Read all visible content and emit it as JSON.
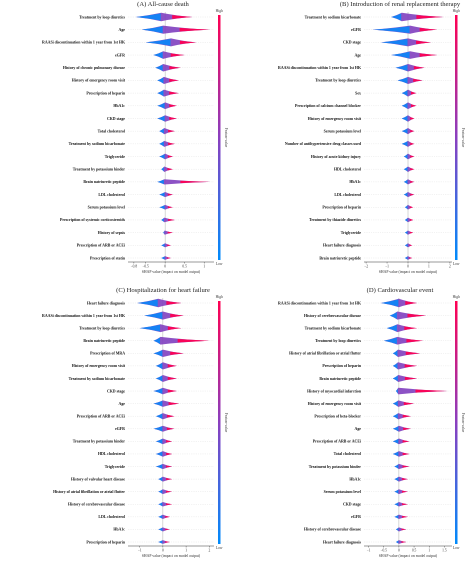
{
  "chart_data": [
    {
      "type": "scatter",
      "panel_title": "(A) All-cause death",
      "xlabel": "SHAP value (impact on model output)",
      "ticks": [
        -0.8,
        -0.5,
        0.0,
        0.5,
        1.0
      ],
      "xlim": [
        -0.95,
        1.25
      ],
      "colorbar_label": "Feature value",
      "colorbar_high": "High",
      "colorbar_low": "Low",
      "features": [
        {
          "name": "Treatment by loop diuretics",
          "min": -0.75,
          "max": 0.7,
          "peak": -0.1,
          "tail": "right"
        },
        {
          "name": "Age",
          "min": -0.6,
          "max": 1.15,
          "peak": -0.05,
          "tail": "right"
        },
        {
          "name": "RAASi discontinuation within 1 year from 1st HK",
          "min": -0.5,
          "max": 0.8,
          "peak": 0.15,
          "tail": "both"
        },
        {
          "name": "eGFR",
          "min": -0.3,
          "max": 0.5,
          "peak": -0.05,
          "tail": "right"
        },
        {
          "name": "History of chronic pulmonary disease",
          "min": -0.25,
          "max": 0.4,
          "peak": -0.05,
          "tail": "right"
        },
        {
          "name": "History of emergency room visit",
          "min": -0.2,
          "max": 0.35,
          "peak": -0.03,
          "tail": "right"
        },
        {
          "name": "Prescription of heparin",
          "min": -0.2,
          "max": 0.35,
          "peak": -0.03,
          "tail": "right"
        },
        {
          "name": "HbA1c",
          "min": -0.2,
          "max": 0.3,
          "peak": 0.0,
          "tail": "both"
        },
        {
          "name": "CKD stage",
          "min": -0.2,
          "max": 0.3,
          "peak": 0.0,
          "tail": "both"
        },
        {
          "name": "Total cholesterol",
          "min": -0.15,
          "max": 0.25,
          "peak": -0.02,
          "tail": "right"
        },
        {
          "name": "Treatment by sodium bicarbonate",
          "min": -0.15,
          "max": 0.25,
          "peak": -0.02,
          "tail": "right"
        },
        {
          "name": "Triglyceride",
          "min": -0.15,
          "max": 0.2,
          "peak": 0.0,
          "tail": "both"
        },
        {
          "name": "Treatment by potassium binder",
          "min": -0.1,
          "max": 0.2,
          "peak": -0.02,
          "tail": "right"
        },
        {
          "name": "Brain natriuretic peptide",
          "min": -0.2,
          "max": 1.15,
          "peak": -0.02,
          "tail": "right"
        },
        {
          "name": "LDL cholesterol",
          "min": -0.15,
          "max": 0.2,
          "peak": 0.0,
          "tail": "both"
        },
        {
          "name": "Serum potassium level",
          "min": -0.15,
          "max": 0.2,
          "peak": 0.0,
          "tail": "both"
        },
        {
          "name": "Prescription of systemic corticosteroids",
          "min": -0.1,
          "max": 0.25,
          "peak": -0.02,
          "tail": "right"
        },
        {
          "name": "History of sepsis",
          "min": -0.05,
          "max": 0.2,
          "peak": -0.01,
          "tail": "right"
        },
        {
          "name": "Prescription of ARB or ACEi",
          "min": -0.1,
          "max": 0.15,
          "peak": 0.0,
          "tail": "both"
        },
        {
          "name": "Prescription of statin",
          "min": -0.1,
          "max": 0.15,
          "peak": 0.0,
          "tail": "both"
        }
      ]
    },
    {
      "type": "scatter",
      "panel_title": "(B) Introduction of renal replacement therapy",
      "xlabel": "SHAP value (impact on model output)",
      "ticks": [
        -2,
        -1,
        0,
        1,
        2
      ],
      "xlim": [
        -2.1,
        2.1
      ],
      "colorbar_label": "Feature value",
      "colorbar_high": "High",
      "colorbar_low": "Low",
      "features": [
        {
          "name": "Treatment by sodium bicarbonate",
          "min": -0.8,
          "max": 1.7,
          "peak": -0.3,
          "tail": "right"
        },
        {
          "name": "eGFR",
          "min": -1.7,
          "max": 1.4,
          "peak": 0.1,
          "tail": "both"
        },
        {
          "name": "CKD stage",
          "min": -1.3,
          "max": 1.1,
          "peak": 0.0,
          "tail": "both"
        },
        {
          "name": "Age",
          "min": -0.8,
          "max": 1.4,
          "peak": 0.1,
          "tail": "both"
        },
        {
          "name": "RAASi discontinuation within 1 year from 1st HK",
          "min": -0.6,
          "max": 0.8,
          "peak": 0.0,
          "tail": "both"
        },
        {
          "name": "Treatment by loop diuretics",
          "min": -0.5,
          "max": 0.7,
          "peak": 0.0,
          "tail": "both"
        },
        {
          "name": "Sex",
          "min": -0.3,
          "max": 0.4,
          "peak": 0.0,
          "tail": "both"
        },
        {
          "name": "Prescription of calcium channel blocker",
          "min": -0.3,
          "max": 0.4,
          "peak": 0.0,
          "tail": "both"
        },
        {
          "name": "History of emergency room visit",
          "min": -0.3,
          "max": 0.3,
          "peak": 0.0,
          "tail": "both"
        },
        {
          "name": "Serum potassium level",
          "min": -0.3,
          "max": 0.3,
          "peak": 0.0,
          "tail": "both"
        },
        {
          "name": "Number of antihypertensive drug classes used",
          "min": -0.3,
          "max": 0.3,
          "peak": 0.0,
          "tail": "both"
        },
        {
          "name": "History of acute kidney injury",
          "min": -0.2,
          "max": 0.3,
          "peak": 0.0,
          "tail": "both"
        },
        {
          "name": "HDL cholesterol",
          "min": -0.2,
          "max": 0.3,
          "peak": 0.0,
          "tail": "both"
        },
        {
          "name": "HbA1c",
          "min": -0.2,
          "max": 0.3,
          "peak": 0.0,
          "tail": "both"
        },
        {
          "name": "LDL cholesterol",
          "min": -0.2,
          "max": 0.3,
          "peak": 0.0,
          "tail": "both"
        },
        {
          "name": "Prescription of heparin",
          "min": -0.15,
          "max": 0.25,
          "peak": 0.0,
          "tail": "both"
        },
        {
          "name": "Treatment by thiazide diuretics",
          "min": -0.15,
          "max": 0.25,
          "peak": 0.0,
          "tail": "both"
        },
        {
          "name": "Triglyceride",
          "min": -0.15,
          "max": 0.25,
          "peak": 0.0,
          "tail": "both"
        },
        {
          "name": "Heart failure diagnosis",
          "min": -0.15,
          "max": 0.2,
          "peak": 0.0,
          "tail": "both"
        },
        {
          "name": "Brain natriuretic peptide",
          "min": -0.15,
          "max": 0.2,
          "peak": 0.0,
          "tail": "both"
        }
      ]
    },
    {
      "type": "scatter",
      "panel_title": "(C) Hospitalization for heart failure",
      "xlabel": "SHAP value (impact on model output)",
      "ticks": [
        -1,
        0,
        1,
        2
      ],
      "xlim": [
        -1.5,
        2.2
      ],
      "colorbar_label": "Feature value",
      "colorbar_high": "High",
      "colorbar_low": "Low",
      "features": [
        {
          "name": "Heart failure diagnosis",
          "min": -1.1,
          "max": 0.8,
          "peak": -0.2,
          "tail": "both"
        },
        {
          "name": "RAASi discontinuation within 1 year from 1st HK",
          "min": -0.8,
          "max": 0.9,
          "peak": 0.0,
          "tail": "both"
        },
        {
          "name": "Treatment by loop diuretics",
          "min": -1.0,
          "max": 0.8,
          "peak": -0.1,
          "tail": "both"
        },
        {
          "name": "Brain natriuretic peptide",
          "min": -0.4,
          "max": 2.0,
          "peak": -0.1,
          "tail": "right"
        },
        {
          "name": "Prescription of MRA",
          "min": -0.4,
          "max": 0.9,
          "peak": 0.0,
          "tail": "right"
        },
        {
          "name": "History of emergency room visit",
          "min": -0.3,
          "max": 0.6,
          "peak": 0.0,
          "tail": "right"
        },
        {
          "name": "Treatment by sodium bicarbonate",
          "min": -0.3,
          "max": 0.6,
          "peak": 0.0,
          "tail": "right"
        },
        {
          "name": "CKD stage",
          "min": -0.4,
          "max": 0.6,
          "peak": 0.0,
          "tail": "both"
        },
        {
          "name": "Age",
          "min": -0.4,
          "max": 0.7,
          "peak": 0.0,
          "tail": "both"
        },
        {
          "name": "Prescription of ARB or ACEi",
          "min": -0.3,
          "max": 0.5,
          "peak": 0.0,
          "tail": "both"
        },
        {
          "name": "eGFR",
          "min": -0.4,
          "max": 0.5,
          "peak": 0.0,
          "tail": "both"
        },
        {
          "name": "Treatment by potassium binder",
          "min": -0.3,
          "max": 0.4,
          "peak": 0.0,
          "tail": "both"
        },
        {
          "name": "HDL cholesterol",
          "min": -0.3,
          "max": 0.4,
          "peak": 0.0,
          "tail": "both"
        },
        {
          "name": "Triglyceride",
          "min": -0.3,
          "max": 0.4,
          "peak": 0.0,
          "tail": "both"
        },
        {
          "name": "History of valvular heart disease",
          "min": -0.2,
          "max": 0.4,
          "peak": 0.0,
          "tail": "both"
        },
        {
          "name": "History of atrial fibrillation or atrial flutter",
          "min": -0.2,
          "max": 0.4,
          "peak": 0.0,
          "tail": "both"
        },
        {
          "name": "History of cerebrovascular disease",
          "min": -0.2,
          "max": 0.4,
          "peak": 0.0,
          "tail": "both"
        },
        {
          "name": "LDL cholesterol",
          "min": -0.2,
          "max": 0.3,
          "peak": 0.0,
          "tail": "both"
        },
        {
          "name": "HbA1c",
          "min": -0.2,
          "max": 0.3,
          "peak": 0.0,
          "tail": "both"
        },
        {
          "name": "Prescription of heparin",
          "min": -0.2,
          "max": 0.3,
          "peak": 0.0,
          "tail": "both"
        }
      ]
    },
    {
      "type": "scatter",
      "panel_title": "(D) Cardiovascular event",
      "xlabel": "SHAP value (impact on model output)",
      "ticks": [
        -1.0,
        -0.5,
        0.0,
        0.5,
        1.0,
        1.5
      ],
      "xlim": [
        -1.15,
        1.75
      ],
      "colorbar_label": "Feature value",
      "colorbar_high": "High",
      "colorbar_low": "Low",
      "features": [
        {
          "name": "RAASi discontinuation within 1 year from 1st HK",
          "min": -0.6,
          "max": 0.6,
          "peak": 0.0,
          "tail": "both"
        },
        {
          "name": "History of cerebrovascular disease",
          "min": -0.3,
          "max": 0.9,
          "peak": -0.05,
          "tail": "right"
        },
        {
          "name": "Treatment by sodium bicarbonate",
          "min": -0.4,
          "max": 0.6,
          "peak": -0.05,
          "tail": "both"
        },
        {
          "name": "Treatment by loop diuretics",
          "min": -0.5,
          "max": 0.8,
          "peak": -0.05,
          "tail": "both"
        },
        {
          "name": "History of atrial fibrillation or atrial flutter",
          "min": -0.2,
          "max": 0.7,
          "peak": -0.03,
          "tail": "right"
        },
        {
          "name": "Prescription of heparin",
          "min": -0.2,
          "max": 0.6,
          "peak": -0.03,
          "tail": "right"
        },
        {
          "name": "Brain natriuretic peptide",
          "min": -0.2,
          "max": 0.6,
          "peak": -0.02,
          "tail": "right"
        },
        {
          "name": "History of myocardial infarction",
          "min": -0.1,
          "max": 1.6,
          "peak": -0.02,
          "tail": "right"
        },
        {
          "name": "History of emergency room visit",
          "min": -0.2,
          "max": 0.5,
          "peak": -0.02,
          "tail": "right"
        },
        {
          "name": "Prescription of beta-blocker",
          "min": -0.2,
          "max": 0.4,
          "peak": -0.02,
          "tail": "right"
        },
        {
          "name": "Age",
          "min": -0.2,
          "max": 0.4,
          "peak": 0.0,
          "tail": "both"
        },
        {
          "name": "Prescription of ARB or ACEi",
          "min": -0.2,
          "max": 0.35,
          "peak": 0.0,
          "tail": "both"
        },
        {
          "name": "Total cholesterol",
          "min": -0.2,
          "max": 0.35,
          "peak": 0.0,
          "tail": "both"
        },
        {
          "name": "Treatment by potassium binder",
          "min": -0.15,
          "max": 0.35,
          "peak": 0.0,
          "tail": "both"
        },
        {
          "name": "HbA1c",
          "min": -0.15,
          "max": 0.3,
          "peak": 0.0,
          "tail": "both"
        },
        {
          "name": "Serum potassium level",
          "min": -0.15,
          "max": 0.3,
          "peak": 0.0,
          "tail": "both"
        },
        {
          "name": "CKD stage",
          "min": -0.15,
          "max": 0.3,
          "peak": 0.0,
          "tail": "both"
        },
        {
          "name": "eGFR",
          "min": -0.15,
          "max": 0.3,
          "peak": 0.0,
          "tail": "both"
        },
        {
          "name": "History of cerebrovascular disease",
          "min": -0.1,
          "max": 0.25,
          "peak": 0.0,
          "tail": "both"
        },
        {
          "name": "Heart failure diagnosis",
          "min": -0.1,
          "max": 0.25,
          "peak": 0.0,
          "tail": "both"
        }
      ]
    }
  ]
}
